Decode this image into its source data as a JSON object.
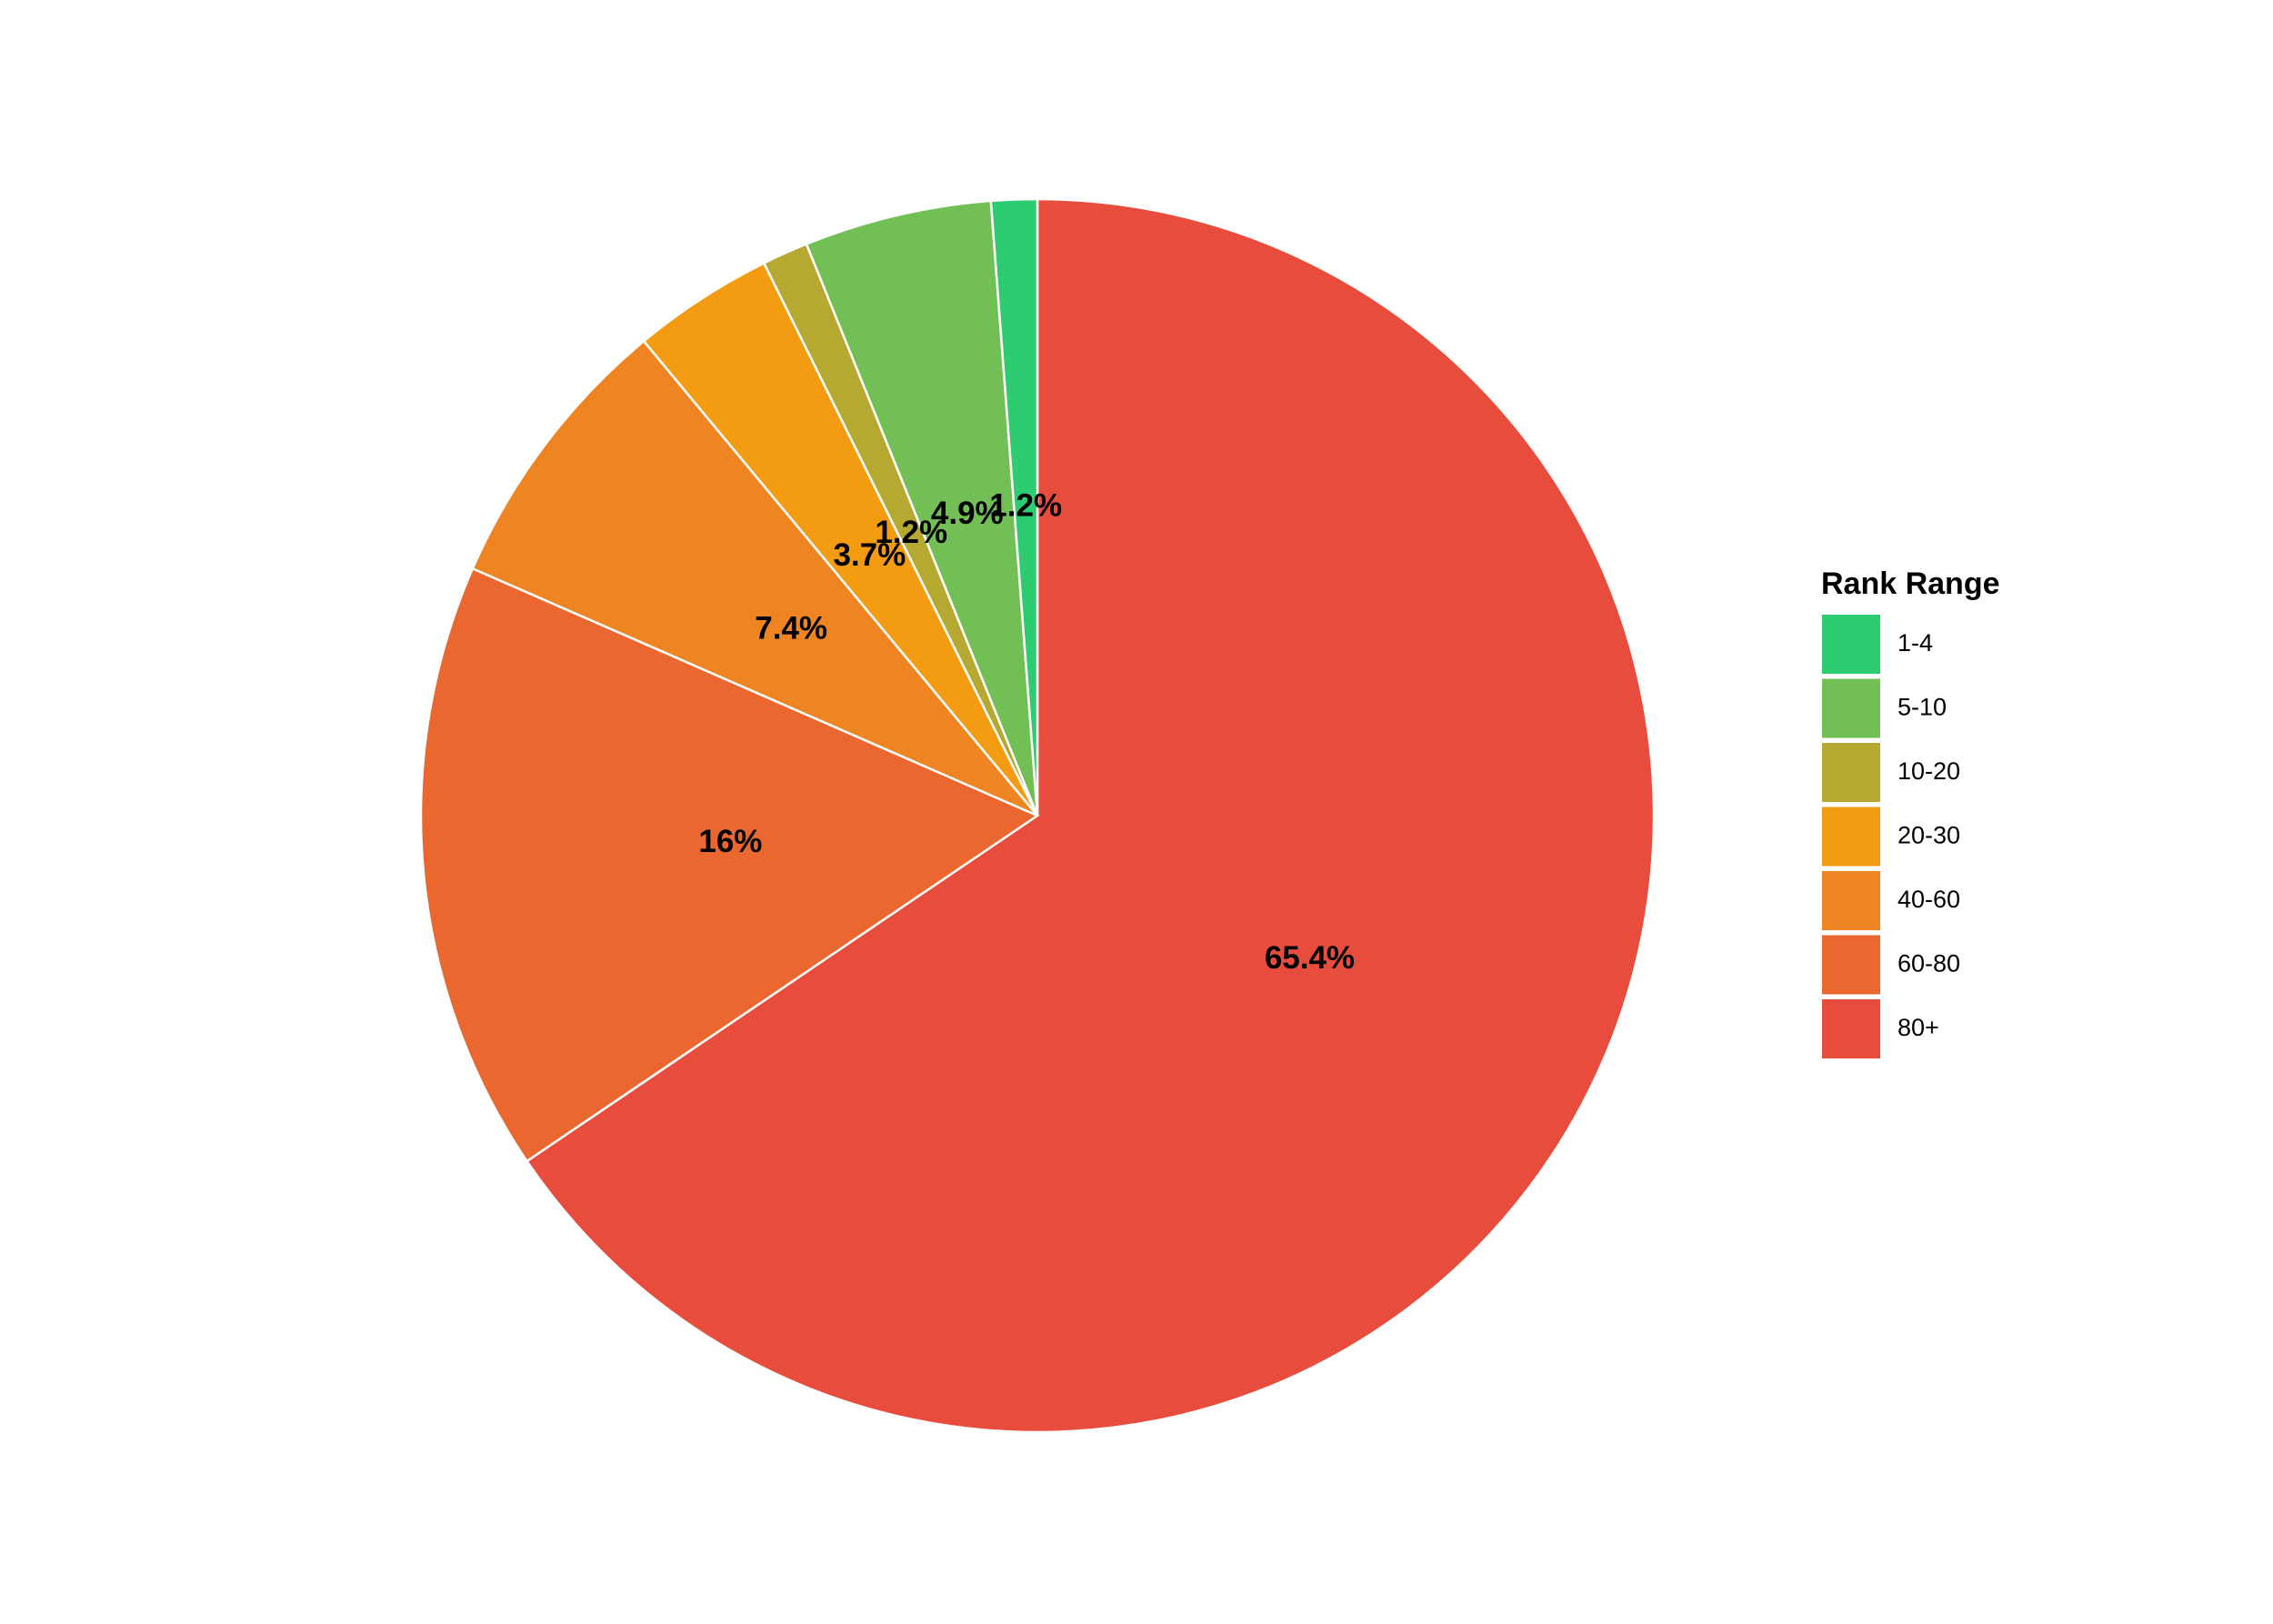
{
  "chart_data": {
    "type": "pie",
    "legend_title": "Rank Range",
    "categories": [
      "1-4",
      "5-10",
      "10-20",
      "20-30",
      "40-60",
      "60-80",
      "80+"
    ],
    "values": [
      1.2,
      4.9,
      1.2,
      3.7,
      7.4,
      16,
      65.4
    ],
    "value_labels": [
      "1.2%",
      "4.9%",
      "1.2%",
      "3.7%",
      "7.4%",
      "16%",
      "65.4%"
    ],
    "colors": [
      "#2ecc71",
      "#72bf55",
      "#b5a932",
      "#f39c12",
      "#ef8422",
      "#ea6730",
      "#e74c3c"
    ],
    "legend": "right"
  }
}
